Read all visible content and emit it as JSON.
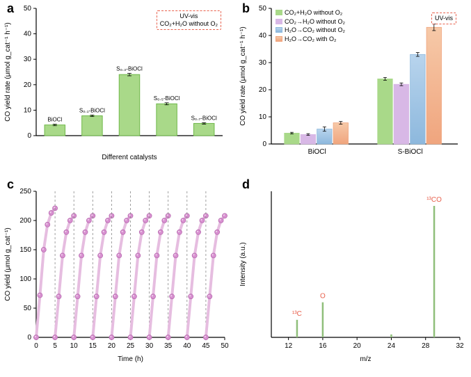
{
  "panelA": {
    "label": "a",
    "label_fontsize": 18,
    "ylabel": "CO yield rate (μmol g_cat⁻¹ h⁻¹)",
    "xlabel": "Different catalysts",
    "ylim": [
      0,
      50
    ],
    "ytick_step": 10,
    "legend_lines": [
      "UV-vis",
      "CO₂+H₂O without O₂"
    ],
    "legend_border_color": "#e8604c",
    "categories": [
      "BiOCl",
      "S₀.₁-BiOCl",
      "S₀.₃-BiOCl",
      "S₀.₅-BiOCl",
      "S₀.₇-BiOCl"
    ],
    "values": [
      4.2,
      7.8,
      24.0,
      12.5,
      4.8
    ],
    "errors": [
      0.3,
      0.3,
      0.5,
      0.4,
      0.3
    ],
    "bar_fill": "#a9d989",
    "bar_stroke": "#6fb84a",
    "axis_fontsize": 10,
    "bar_label_fontsize": 8
  },
  "panelB": {
    "label": "b",
    "label_fontsize": 18,
    "ylabel": "CO yield rate (μmol g_cat⁻¹ h⁻¹)",
    "ylim": [
      0,
      50
    ],
    "ytick_step": 10,
    "legend_items": [
      {
        "label": "CO₂+H₂O without O₂",
        "top": "#a9d989",
        "bot": "#a9d989"
      },
      {
        "label": "CO₂→H₂O without O₂",
        "top": "#d8b8e6",
        "bot": "#d8b8e6"
      },
      {
        "label": "H₂O→CO₂ without O₂",
        "top": "#b8d4ed",
        "bot": "#8db8dd"
      },
      {
        "label": "H₂O→CO₂ with O₂",
        "top": "#f6c9a8",
        "bot": "#f0a57e"
      }
    ],
    "uv_label": "UV-vis",
    "uv_border": "#e8604c",
    "groups": [
      "BiOCl",
      "S-BiOCl"
    ],
    "bars": {
      "BiOCl": {
        "vals": [
          4.0,
          3.5,
          5.5,
          7.8
        ],
        "errs": [
          0.3,
          0.3,
          0.8,
          0.5
        ]
      },
      "S-BiOCl": {
        "vals": [
          24.0,
          22.0,
          33.0,
          43.0
        ],
        "errs": [
          0.5,
          0.5,
          0.7,
          1.2
        ]
      }
    },
    "colors_top": [
      "#a9d989",
      "#d8b8e6",
      "#b8d4ed",
      "#f6c9a8"
    ],
    "colors_bot": [
      "#a9d989",
      "#d8b8e6",
      "#8db8dd",
      "#f0a57e"
    ],
    "axis_fontsize": 10
  },
  "panelC": {
    "label": "c",
    "label_fontsize": 18,
    "ylabel": "CO yield (μmol g_cat⁻¹)",
    "xlabel": "Time (h)",
    "ylim": [
      0,
      250
    ],
    "ytick_step": 50,
    "xlim": [
      0,
      50
    ],
    "xtick_step": 5,
    "n_cycles": 10,
    "cycle_hours": 5,
    "curve_y": [
      0,
      70,
      140,
      180,
      200,
      208
    ],
    "first_curve_y": [
      0,
      72,
      150,
      193,
      213,
      221
    ],
    "line_color": "#e6bde0",
    "marker_fill": "#d890d0",
    "marker_stroke": "#b86cb0",
    "dash_color": "#888888",
    "axis_fontsize": 10
  },
  "panelD": {
    "label": "d",
    "label_fontsize": 18,
    "ylabel": "Intensity (a.u.)",
    "xlabel": "m/z",
    "xlim": [
      10,
      32
    ],
    "xtick_step": 4,
    "peaks": [
      {
        "mz": 13,
        "h": 0.12,
        "label": "¹³C"
      },
      {
        "mz": 16,
        "h": 0.24,
        "label": "O"
      },
      {
        "mz": 24,
        "h": 0.02,
        "label": ""
      },
      {
        "mz": 29,
        "h": 0.9,
        "label": "¹³CO"
      }
    ],
    "peak_color": "#8fbf7a",
    "label_color": "#e8604c",
    "axis_fontsize": 10
  }
}
